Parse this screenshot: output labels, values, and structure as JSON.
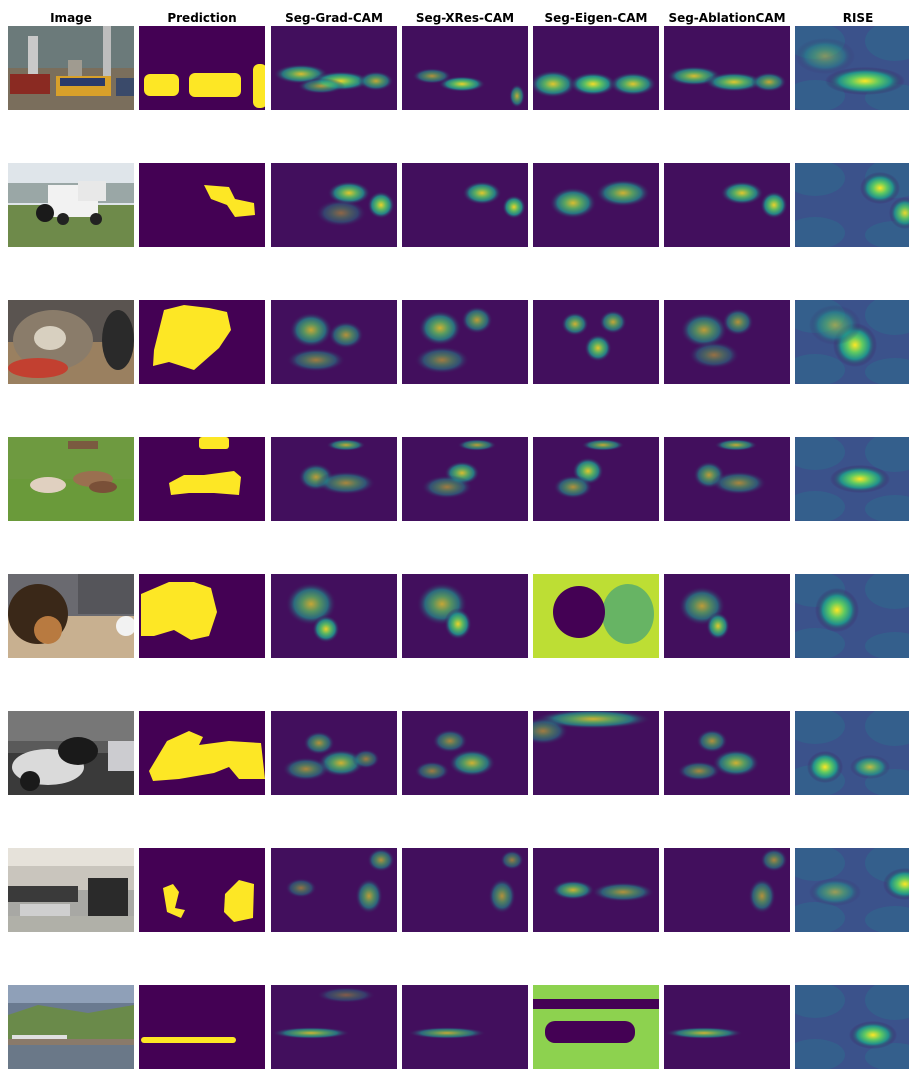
{
  "figure": {
    "columns": [
      "Image",
      "Prediction",
      "Seg-Grad-CAM",
      "Seg-XRes-CAM",
      "Seg-Eigen-CAM",
      "Seg-AblationCAM",
      "RISE"
    ]
  },
  "rows": [
    {
      "subject": "bus"
    },
    {
      "subject": "pickup truck"
    },
    {
      "subject": "cat"
    },
    {
      "subject": "cows"
    },
    {
      "subject": "dog"
    },
    {
      "subject": "motorcycle"
    },
    {
      "subject": "office people"
    },
    {
      "subject": "train on coast"
    }
  ],
  "colors": {
    "viridis_dark": "#440154",
    "viridis_blue": "#3b528b",
    "viridis_teal": "#21918c",
    "viridis_green": "#5ec962",
    "viridis_yellow": "#fde725"
  }
}
